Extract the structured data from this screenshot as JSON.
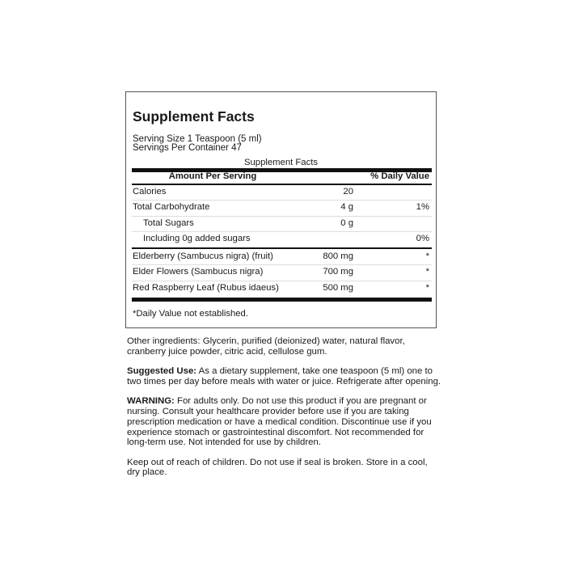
{
  "panel": {
    "title": "Supplement Facts",
    "serving_size": "Serving Size 1 Teaspoon (5 ml)",
    "servings_per_container": "Servings Per Container 47",
    "caption": "Supplement Facts",
    "header": {
      "amount": "Amount Per Serving",
      "dv": "% Daily Value"
    },
    "rows": [
      {
        "name": "Calories",
        "amount": "20",
        "dv": ""
      },
      {
        "name": "Total Carbohydrate",
        "amount": "4 g",
        "dv": "1%"
      },
      {
        "name": "Total Sugars",
        "amount": "0 g",
        "dv": ""
      },
      {
        "name": "Including 0g added sugars",
        "amount": "",
        "dv": "0%"
      },
      {
        "name": "Elderberry (Sambucus nigra) (fruit)",
        "amount": "800 mg",
        "dv": "*"
      },
      {
        "name": "Elder Flowers (Sambucus nigra)",
        "amount": "700 mg",
        "dv": "*"
      },
      {
        "name": "Red Raspberry Leaf (Rubus idaeus)",
        "amount": "500 mg",
        "dv": "*"
      }
    ],
    "footnote": "*Daily Value not established."
  },
  "other_ingredients": "Other ingredients: Glycerin, purified (deionized) water, natural flavor, cranberry juice powder, citric acid, cellulose gum.",
  "suggested_use": {
    "label": "Suggested Use:",
    "text": " As a dietary supplement, take one teaspoon (5 ml) one to two times per day before meals with water or juice. Refrigerate after opening."
  },
  "warning": {
    "label": "WARNING:",
    "text": " For adults only. Do not use this product if you are pregnant or nursing. Consult your healthcare provider before use if you are taking prescription medication or have a medical condition. Discontinue use if you experience stomach or gastrointestinal discomfort. Not recommended for long-term use. Not intended for use by children."
  },
  "storage": "Keep out of reach of children. Do not use if seal is broken. Store in a cool, dry place."
}
